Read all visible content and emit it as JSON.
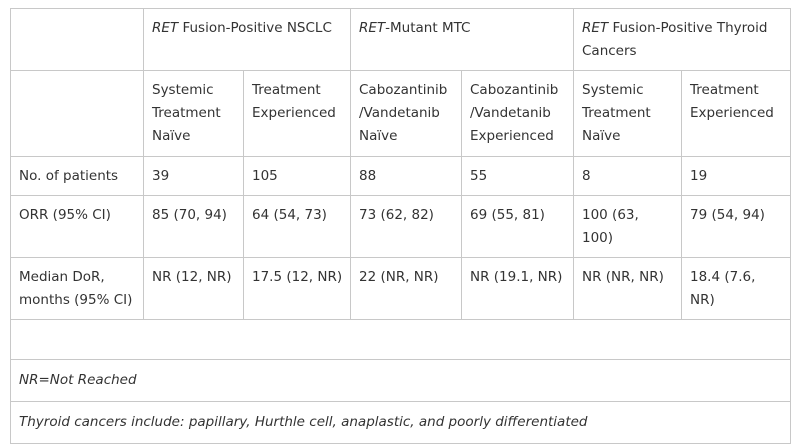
{
  "table": {
    "groups": [
      {
        "italic": "RET",
        "rest": " Fusion-Positive NSCLC"
      },
      {
        "italic": "RET",
        "rest": "-Mutant MTC"
      },
      {
        "italic": "RET",
        "rest": " Fusion-Positive Thyroid Cancers"
      }
    ],
    "subheaders": [
      "Systemic Treatment Naïve",
      "Treatment Experienced",
      "Cabozantinib /Vandetanib Naïve",
      "Cabozantinib /Vandetanib Experienced",
      "Systemic Treatment Naïve",
      "Treatment Experienced"
    ],
    "rows": [
      {
        "label": "No. of patients",
        "cells": [
          "39",
          "105",
          "88",
          "55",
          "8",
          "19"
        ]
      },
      {
        "label": "ORR (95% CI)",
        "cells": [
          "85 (70, 94)",
          "64 (54, 73)",
          "73 (62, 82)",
          "69 (55, 81)",
          "100 (63, 100)",
          "79 (54, 94)"
        ]
      },
      {
        "label": "Median DoR, months (95% CI)",
        "cells": [
          "NR (12, NR)",
          "17.5 (12, NR)",
          "22 (NR, NR)",
          "NR (19.1, NR)",
          "NR (NR, NR)",
          "18.4 (7.6, NR)"
        ]
      }
    ],
    "notes": [
      "NR=Not Reached",
      "Thyroid cancers include: papillary, Hurthle cell, anaplastic, and poorly differentiated"
    ]
  }
}
